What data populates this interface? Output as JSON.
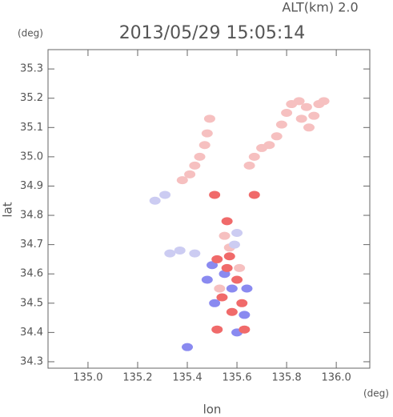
{
  "chart_data": {
    "type": "scatter",
    "title": "2013/05/29 15:05:14",
    "subtitle": "ALT(km) 2.0",
    "x_label": "lon",
    "y_label": "lat",
    "x_unit": "(deg)",
    "y_unit": "(deg)",
    "xlim": [
      134.839,
      136.135
    ],
    "ylim": [
      34.278,
      35.366
    ],
    "xticks": [
      {
        "value": 135,
        "label": "135.0"
      },
      135.2,
      135.4,
      135.6,
      135.8,
      {
        "value": 136,
        "label": "136.0"
      }
    ],
    "yticks": [
      34.3,
      34.4,
      34.5,
      34.6,
      34.7,
      34.8,
      34.9,
      {
        "value": 35,
        "label": "35.0"
      },
      35.1,
      35.2,
      35.3
    ],
    "series": [
      {
        "color": "#f6c0c0",
        "x": [
          135.65,
          135.67,
          135.7,
          135.73,
          135.76,
          135.78,
          135.8,
          135.82,
          135.85,
          135.88,
          135.91,
          135.93,
          135.95,
          135.86,
          135.89,
          135.49,
          135.48,
          135.47,
          135.45,
          135.43,
          135.41,
          135.38,
          135.55,
          135.57,
          135.53,
          135.61
        ],
        "values": [
          34.97,
          35.0,
          35.03,
          35.04,
          35.07,
          35.11,
          35.15,
          35.18,
          35.19,
          35.17,
          35.14,
          35.18,
          35.19,
          35.13,
          35.1,
          35.13,
          35.08,
          35.04,
          35.0,
          34.97,
          34.94,
          34.92,
          34.73,
          34.69,
          34.55,
          34.62
        ]
      },
      {
        "color": "#ccccf2",
        "x": [
          135.31,
          135.27,
          135.37,
          135.33,
          135.43,
          135.59,
          135.6
        ],
        "values": [
          34.87,
          34.85,
          34.68,
          34.67,
          34.67,
          34.7,
          34.74
        ]
      },
      {
        "color": "#8a8af0",
        "x": [
          135.55,
          135.5,
          135.58,
          135.51,
          135.6,
          135.63,
          135.4,
          135.48,
          135.64
        ],
        "values": [
          34.6,
          34.63,
          34.55,
          34.5,
          34.4,
          34.46,
          34.35,
          34.58,
          34.55
        ]
      },
      {
        "color": "#f06a6a",
        "x": [
          135.52,
          135.56,
          135.6,
          135.54,
          135.62,
          135.57,
          135.63,
          135.52,
          135.56,
          135.67,
          135.51,
          135.58
        ],
        "values": [
          34.65,
          34.62,
          34.58,
          34.52,
          34.5,
          34.66,
          34.41,
          34.41,
          34.78,
          34.87,
          34.87,
          34.47
        ]
      }
    ]
  }
}
